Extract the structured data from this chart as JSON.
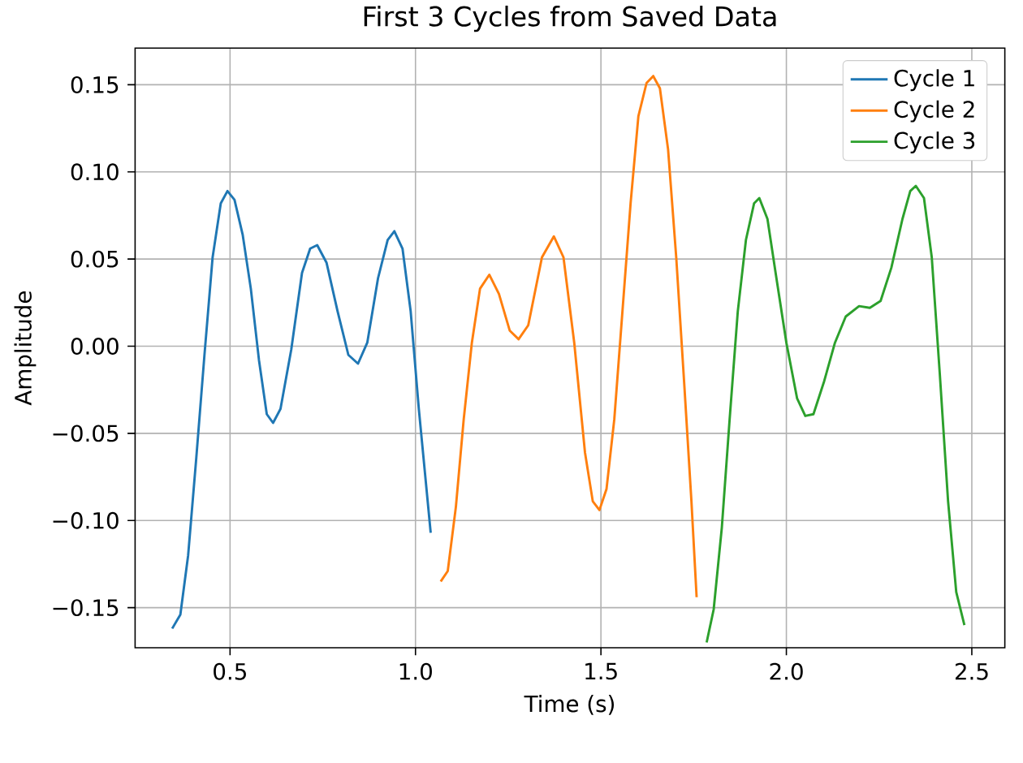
{
  "chart_data": {
    "type": "line",
    "title": "First 3 Cycles from Saved Data",
    "xlabel": "Time (s)",
    "ylabel": "Amplitude",
    "xlim": [
      0.244,
      2.589
    ],
    "ylim": [
      -0.173,
      0.171
    ],
    "xticks": [
      {
        "value": 0.5,
        "label": "0.5"
      },
      {
        "value": 1.0,
        "label": "1.0"
      },
      {
        "value": 1.5,
        "label": "1.5"
      },
      {
        "value": 2.0,
        "label": "2.0"
      },
      {
        "value": 2.5,
        "label": "2.5"
      }
    ],
    "yticks": [
      {
        "value": -0.15,
        "label": "−0.15"
      },
      {
        "value": -0.1,
        "label": "−0.10"
      },
      {
        "value": -0.05,
        "label": "−0.05"
      },
      {
        "value": 0,
        "label": "0.00"
      },
      {
        "value": 0.05,
        "label": "0.05"
      },
      {
        "value": 0.1,
        "label": "0.10"
      },
      {
        "value": 0.15,
        "label": "0.15"
      }
    ],
    "grid": true,
    "legend": "top right",
    "line_style": "solid",
    "marker": "none",
    "series": [
      {
        "name": "Cycle 1",
        "color": "#1f77b4",
        "x": [
          0.344,
          0.366,
          0.387,
          0.409,
          0.431,
          0.453,
          0.475,
          0.493,
          0.512,
          0.534,
          0.556,
          0.578,
          0.599,
          0.616,
          0.636,
          0.665,
          0.694,
          0.716,
          0.735,
          0.76,
          0.79,
          0.819,
          0.845,
          0.87,
          0.899,
          0.925,
          0.943,
          0.965,
          0.987,
          1.009,
          1.041
        ],
        "values": [
          -0.162,
          -0.154,
          -0.12,
          -0.064,
          -0.005,
          0.051,
          0.082,
          0.089,
          0.084,
          0.064,
          0.033,
          -0.008,
          -0.039,
          -0.044,
          -0.036,
          -0.002,
          0.042,
          0.056,
          0.058,
          0.048,
          0.02,
          -0.005,
          -0.01,
          0.002,
          0.039,
          0.061,
          0.066,
          0.056,
          0.02,
          -0.036,
          -0.107
        ]
      },
      {
        "name": "Cycle 2",
        "color": "#ff7f0e",
        "x": [
          1.068,
          1.087,
          1.109,
          1.13,
          1.152,
          1.174,
          1.199,
          1.225,
          1.254,
          1.278,
          1.304,
          1.341,
          1.373,
          1.399,
          1.428,
          1.457,
          1.478,
          1.496,
          1.515,
          1.536,
          1.558,
          1.58,
          1.601,
          1.623,
          1.641,
          1.659,
          1.681,
          1.703,
          1.725,
          1.744,
          1.758
        ],
        "values": [
          -0.135,
          -0.129,
          -0.092,
          -0.042,
          0.002,
          0.033,
          0.041,
          0.03,
          0.009,
          0.004,
          0.012,
          0.051,
          0.063,
          0.051,
          0.002,
          -0.061,
          -0.089,
          -0.094,
          -0.082,
          -0.042,
          0.02,
          0.082,
          0.132,
          0.151,
          0.155,
          0.148,
          0.113,
          0.051,
          -0.023,
          -0.089,
          -0.144
        ]
      },
      {
        "name": "Cycle 3",
        "color": "#2ca02c",
        "x": [
          1.785,
          1.804,
          1.826,
          1.847,
          1.869,
          1.891,
          1.913,
          1.927,
          1.949,
          1.971,
          2.0,
          2.029,
          2.051,
          2.073,
          2.102,
          2.131,
          2.16,
          2.196,
          2.225,
          2.254,
          2.283,
          2.313,
          2.334,
          2.349,
          2.371,
          2.392,
          2.414,
          2.436,
          2.458,
          2.48
        ],
        "values": [
          -0.17,
          -0.151,
          -0.104,
          -0.042,
          0.02,
          0.061,
          0.082,
          0.085,
          0.073,
          0.042,
          0.002,
          -0.03,
          -0.04,
          -0.039,
          -0.02,
          0.002,
          0.017,
          0.023,
          0.022,
          0.026,
          0.045,
          0.073,
          0.089,
          0.092,
          0.085,
          0.051,
          -0.017,
          -0.089,
          -0.141,
          -0.16
        ]
      }
    ]
  }
}
